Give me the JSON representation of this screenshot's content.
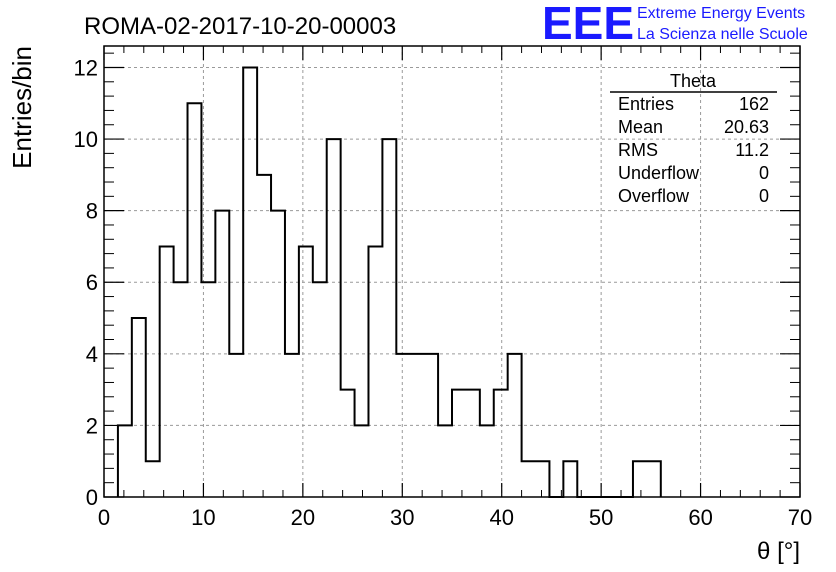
{
  "header": {
    "title": "ROMA-02-2017-10-20-00003",
    "logo_text": "EEE",
    "brand_line1": "Extreme Energy Events",
    "brand_line2": "La Scienza nelle Scuole",
    "brand_color": "#1a1aff"
  },
  "stats": {
    "title": "Theta",
    "rows": [
      {
        "label": "Entries",
        "value": "162"
      },
      {
        "label": "Mean",
        "value": "20.63"
      },
      {
        "label": "RMS",
        "value": "11.2"
      },
      {
        "label": "Underflow",
        "value": "0"
      },
      {
        "label": "Overflow",
        "value": "0"
      }
    ]
  },
  "chart_data": {
    "type": "bar",
    "title": "ROMA-02-2017-10-20-00003",
    "xlabel": "θ [°]",
    "ylabel": "Entries/bin",
    "xlim": [
      0,
      70
    ],
    "ylim": [
      0,
      12.6
    ],
    "xticks": [
      0,
      10,
      20,
      30,
      40,
      50,
      60,
      70
    ],
    "yticks": [
      0,
      2,
      4,
      6,
      8,
      10,
      12
    ],
    "grid": true,
    "bin_width": 1.4,
    "bin_start": 1.4,
    "values": [
      2,
      5,
      1,
      7,
      6,
      11,
      6,
      8,
      4,
      12,
      9,
      8,
      4,
      7,
      6,
      10,
      3,
      2,
      7,
      10,
      4,
      4,
      4,
      2,
      3,
      3,
      2,
      3,
      4,
      1,
      1,
      0,
      1,
      0,
      0,
      0,
      0,
      1,
      1
    ]
  }
}
